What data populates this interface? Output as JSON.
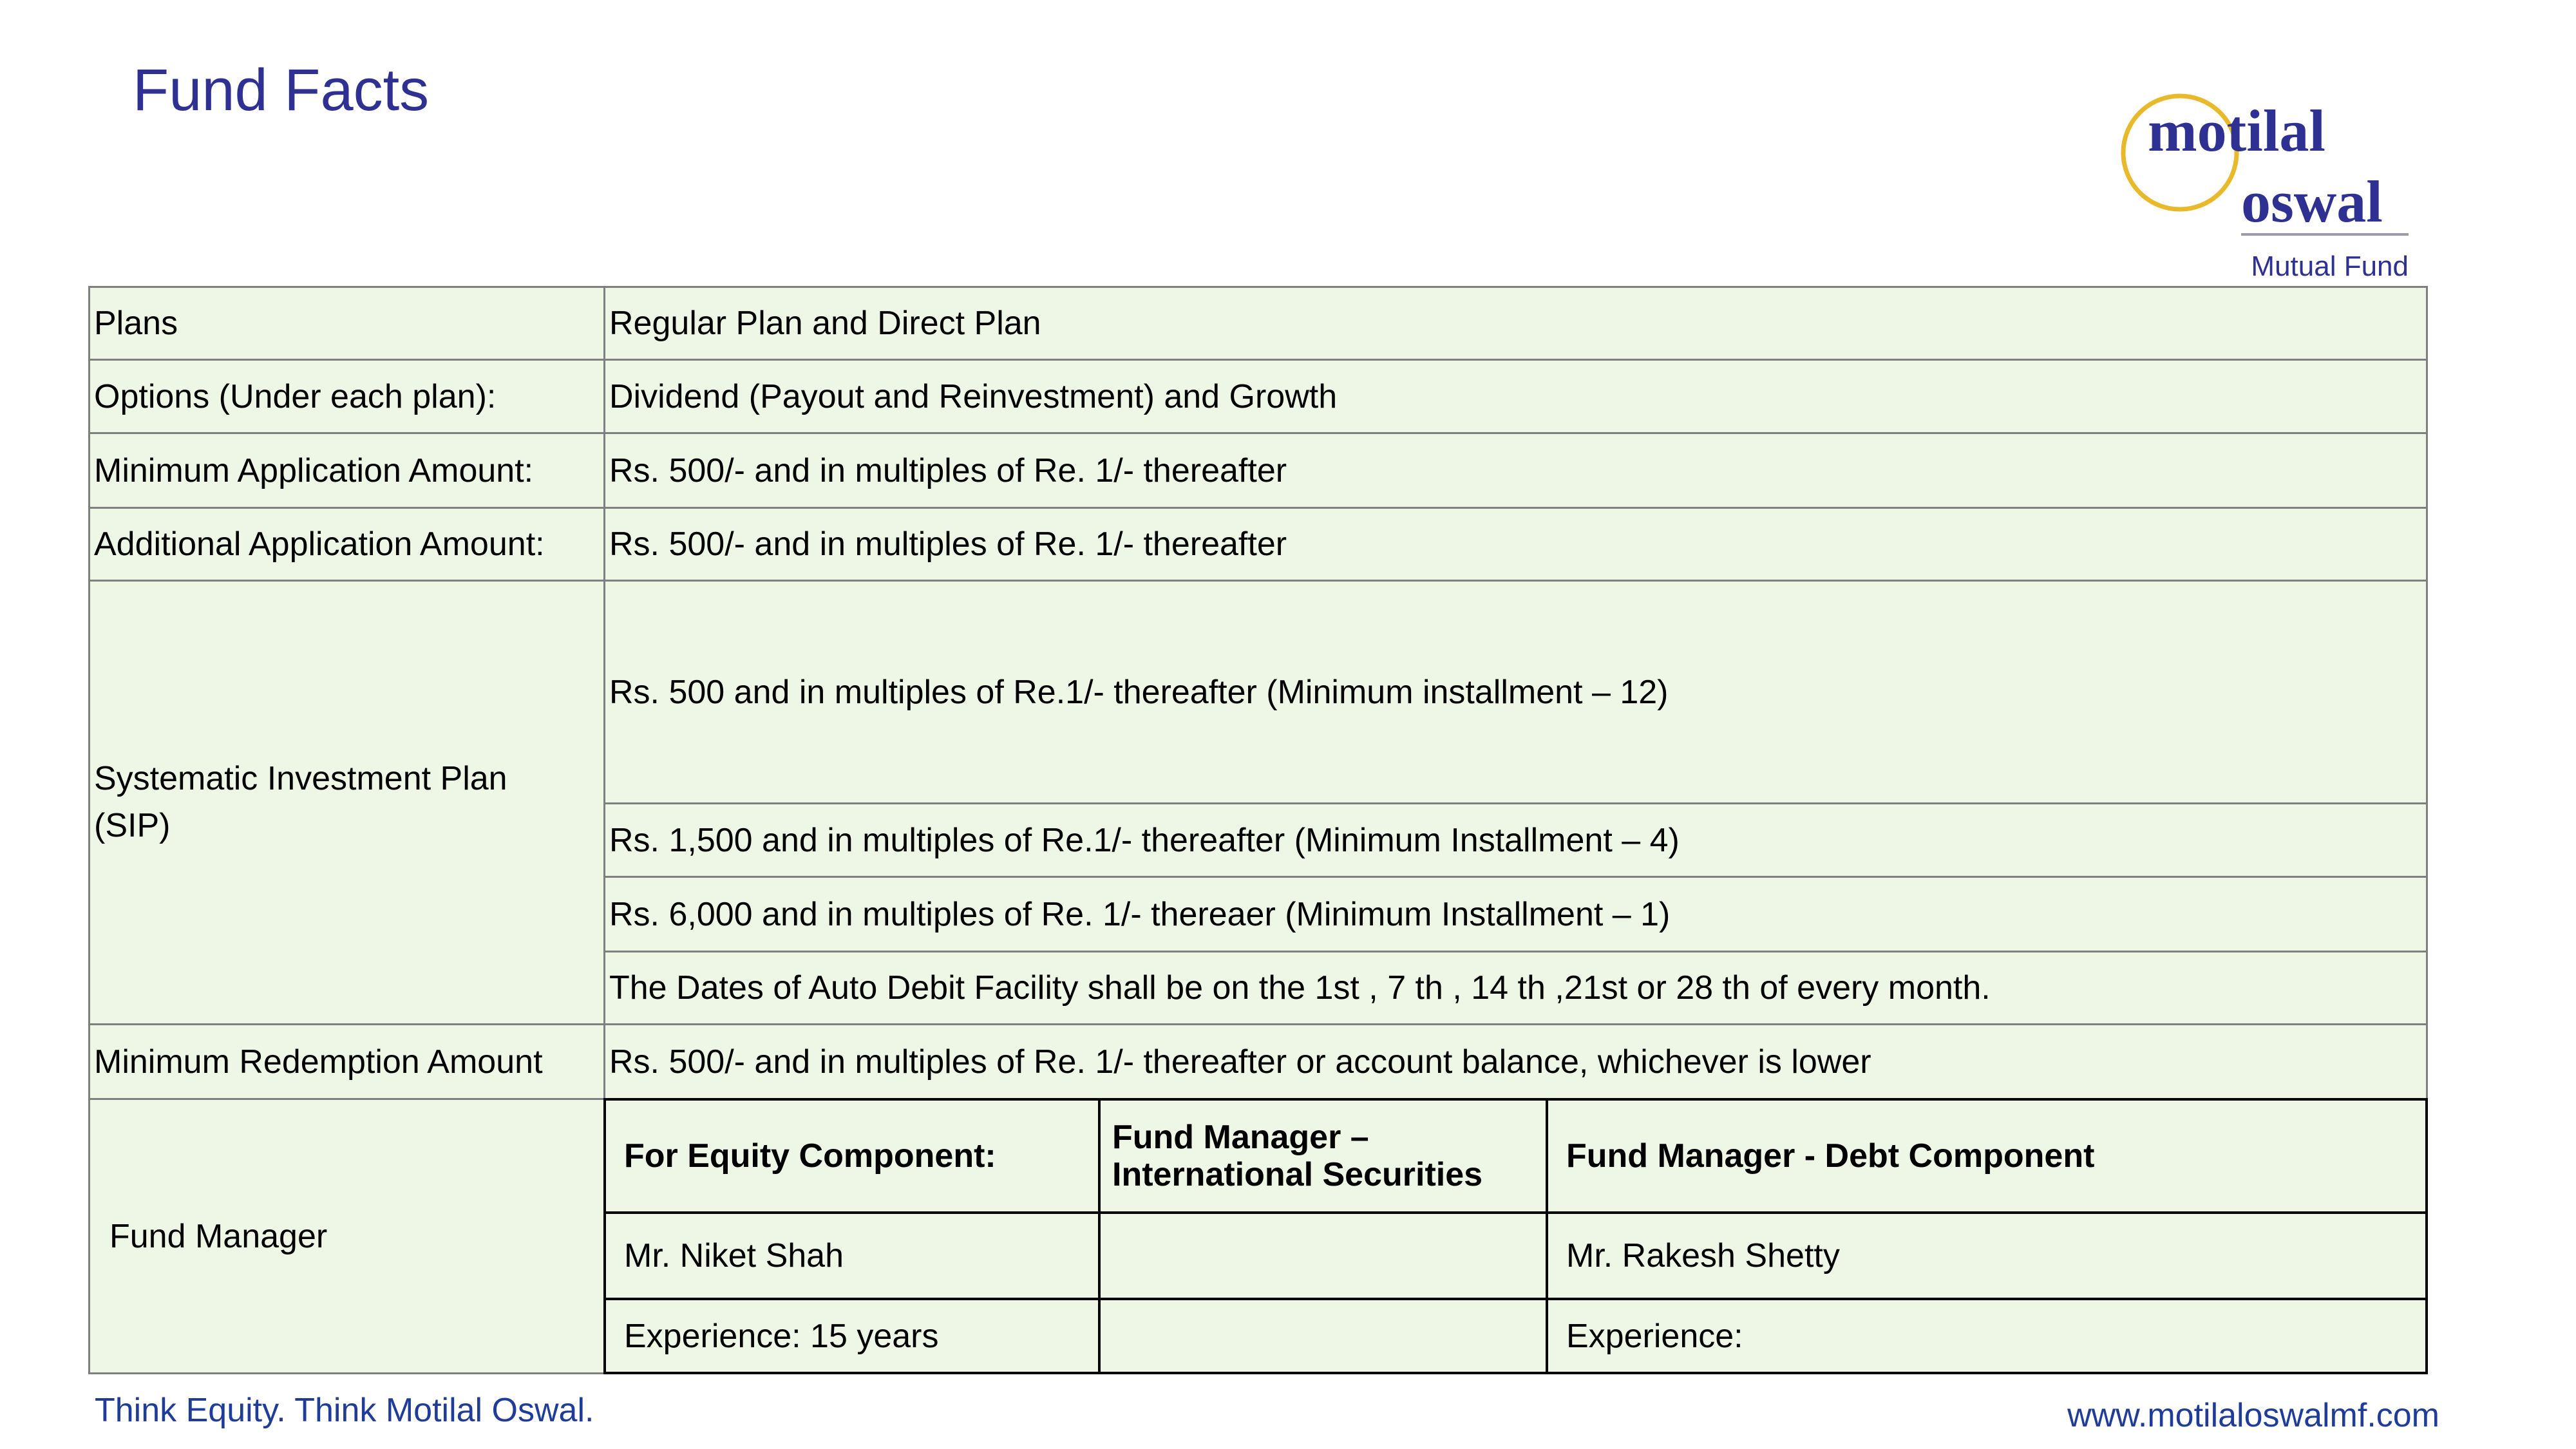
{
  "title": "Fund Facts",
  "logo": {
    "line1": "motilal",
    "line2": "oswal",
    "line3": "Mutual Fund",
    "colors": {
      "text": "#2E3192",
      "ring": "#E8B92A"
    }
  },
  "rows": [
    {
      "label": "Plans",
      "value": "Regular Plan and Direct Plan"
    },
    {
      "label": "Options (Under each plan):",
      "value": "Dividend (Payout and Reinvestment) and Growth"
    },
    {
      "label": "Minimum Application Amount:",
      "value": "Rs. 500/- and in multiples of Re. 1/- thereafter"
    },
    {
      "label": "Additional Application Amount:",
      "value": "Rs. 500/- and in multiples of Re. 1/- thereafter"
    }
  ],
  "sip": {
    "label": "Systematic Investment Plan (SIP)",
    "values": [
      "Rs. 500 and in multiples of Re.1/- thereafter (Minimum installment – 12)",
      "Rs. 1,500 and in multiples of Re.1/- thereafter (Minimum Installment – 4)",
      "Rs. 6,000 and in multiples of Re. 1/- thereaer (Minimum Installment – 1)",
      "The Dates of Auto Debit Facility shall be on the 1st , 7 th , 14 th ,21st or 28 th of every month."
    ]
  },
  "redemption": {
    "label": "Minimum Redemption Amount",
    "value": "Rs. 500/- and in multiples of Re. 1/- thereafter or account balance, whichever is lower"
  },
  "fund_manager": {
    "label": "Fund Manager",
    "headers": [
      "For Equity Component:",
      "Fund Manager – International Securities",
      "Fund Manager - Debt Component"
    ],
    "names": [
      "Mr. Niket Shah",
      "",
      "Mr. Rakesh Shetty"
    ],
    "experience": [
      "Experience: 15 years",
      "",
      "Experience:"
    ]
  },
  "footer": {
    "tagline": "Think Equity. Think Motilal Oswal.",
    "url": "www.motilaloswalmf.com"
  },
  "colors": {
    "cell_bg": "#EEF7E6",
    "brand_blue": "#2E3192",
    "footer_blue": "#1F3C99"
  }
}
